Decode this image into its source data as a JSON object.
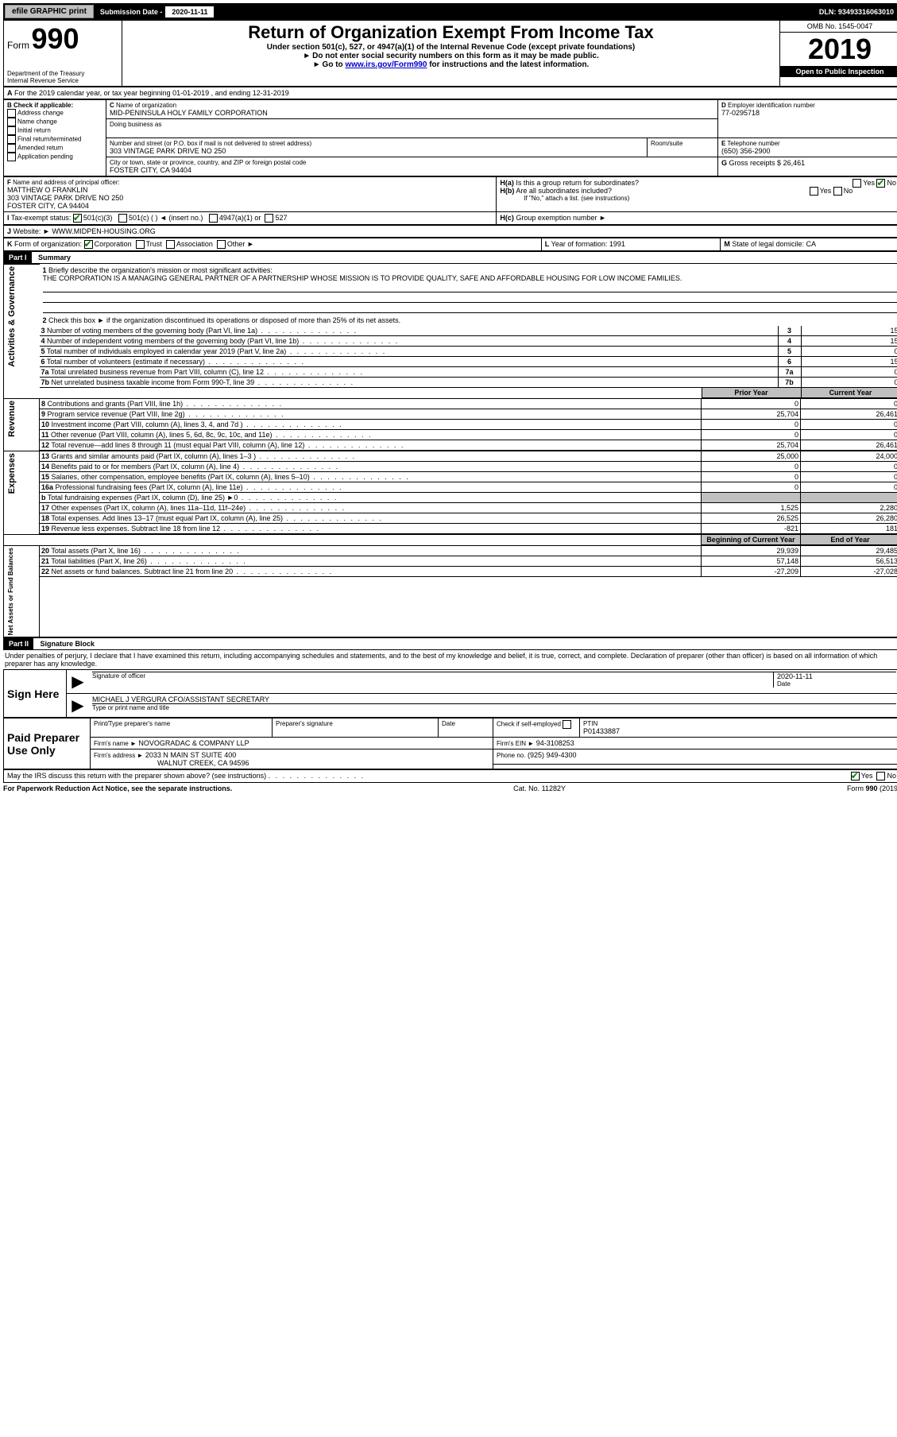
{
  "topbar": {
    "efile": "efile GRAPHIC print",
    "sub_label": "Submission Date - ",
    "sub_date": "2020-11-11",
    "dln_label": "DLN: ",
    "dln": "93493316063010"
  },
  "header": {
    "form_word": "Form",
    "form_num": "990",
    "dept1": "Department of the Treasury",
    "dept2": "Internal Revenue Service",
    "title": "Return of Organization Exempt From Income Tax",
    "sub1": "Under section 501(c), 527, or 4947(a)(1) of the Internal Revenue Code (except private foundations)",
    "sub2": "Do not enter social security numbers on this form as it may be made public.",
    "sub3_pre": "Go to ",
    "sub3_link": "www.irs.gov/Form990",
    "sub3_post": " for instructions and the latest information.",
    "omb_label": "OMB No. 1545-0047",
    "year": "2019",
    "open": "Open to Public Inspection"
  },
  "lineA": "For the 2019 calendar year, or tax year beginning 01-01-2019   , and ending 12-31-2019",
  "boxB": {
    "label": "Check if applicable:",
    "items": [
      "Address change",
      "Name change",
      "Initial return",
      "Final return/terminated",
      "Amended return",
      "Application pending"
    ]
  },
  "boxC": {
    "label": "Name of organization",
    "name": "MID-PENINSULA HOLY FAMILY CORPORATION",
    "dba_label": "Doing business as",
    "addr_label": "Number and street (or P.O. box if mail is not delivered to street address)",
    "room_label": "Room/suite",
    "addr": "303 VINTAGE PARK DRIVE NO 250",
    "city_label": "City or town, state or province, country, and ZIP or foreign postal code",
    "city": "FOSTER CITY, CA  94404"
  },
  "boxD": {
    "label": "Employer identification number",
    "val": "77-0295718"
  },
  "boxE": {
    "label": "Telephone number",
    "val": "(650) 356-2900"
  },
  "boxG": {
    "label": "Gross receipts $",
    "val": "26,461"
  },
  "boxF": {
    "label": "Name and address of principal officer:",
    "name": "MATTHEW O FRANKLIN",
    "addr": "303 VINTAGE PARK DRIVE NO 250",
    "city": "FOSTER CITY, CA  94404"
  },
  "boxH": {
    "a": "Is this a group return for subordinates?",
    "b": "Are all subordinates included?",
    "note": "If \"No,\" attach a list. (see instructions)",
    "c_label": "Group exemption number ►",
    "yes": "Yes",
    "no": "No"
  },
  "taxexempt": {
    "label": "Tax-exempt status:",
    "a": "501(c)(3)",
    "b": "501(c) (  ) ◄ (insert no.)",
    "c": "4947(a)(1) or",
    "d": "527"
  },
  "boxJ": {
    "label": "Website: ►",
    "val": "WWW.MIDPEN-HOUSING.ORG"
  },
  "boxK": {
    "label": "Form of organization:",
    "a": "Corporation",
    "b": "Trust",
    "c": "Association",
    "d": "Other ►"
  },
  "boxL": {
    "label": "Year of formation:",
    "val": "1991"
  },
  "boxM": {
    "label": "State of legal domicile:",
    "val": "CA"
  },
  "part1": {
    "bar": "Part I",
    "title": "Summary",
    "q1": "Briefly describe the organization's mission or most significant activities:",
    "q1_val": "THE CORPORATION IS A MANAGING GENERAL PARTNER OF A PARTNERSHIP WHOSE MISSION IS TO PROVIDE QUALITY, SAFE AND AFFORDABLE HOUSING FOR LOW INCOME FAMILIES.",
    "q2": "Check this box ►      if the organization discontinued its operations or disposed of more than 25% of its net assets.",
    "sideA": "Activities & Governance",
    "sideR": "Revenue",
    "sideE": "Expenses",
    "sideN": "Net Assets or Fund Balances",
    "col_prior": "Prior Year",
    "col_curr": "Current Year",
    "col_boy": "Beginning of Current Year",
    "col_eoy": "End of Year",
    "rows_gov": [
      {
        "n": "3",
        "t": "Number of voting members of the governing body (Part VI, line 1a)",
        "v": "15"
      },
      {
        "n": "4",
        "t": "Number of independent voting members of the governing body (Part VI, line 1b)",
        "v": "15"
      },
      {
        "n": "5",
        "t": "Total number of individuals employed in calendar year 2019 (Part V, line 2a)",
        "v": "0"
      },
      {
        "n": "6",
        "t": "Total number of volunteers (estimate if necessary)",
        "v": "15"
      },
      {
        "n": "7a",
        "t": "Total unrelated business revenue from Part VIII, column (C), line 12",
        "v": "0"
      },
      {
        "n": "7b",
        "t": "Net unrelated business taxable income from Form 990-T, line 39",
        "v": "0"
      }
    ],
    "rows_rev": [
      {
        "n": "8",
        "t": "Contributions and grants (Part VIII, line 1h)",
        "p": "0",
        "c": "0"
      },
      {
        "n": "9",
        "t": "Program service revenue (Part VIII, line 2g)",
        "p": "25,704",
        "c": "26,461"
      },
      {
        "n": "10",
        "t": "Investment income (Part VIII, column (A), lines 3, 4, and 7d )",
        "p": "0",
        "c": "0"
      },
      {
        "n": "11",
        "t": "Other revenue (Part VIII, column (A), lines 5, 6d, 8c, 9c, 10c, and 11e)",
        "p": "0",
        "c": "0"
      },
      {
        "n": "12",
        "t": "Total revenue—add lines 8 through 11 (must equal Part VIII, column (A), line 12)",
        "p": "25,704",
        "c": "26,461"
      }
    ],
    "rows_exp": [
      {
        "n": "13",
        "t": "Grants and similar amounts paid (Part IX, column (A), lines 1–3 )",
        "p": "25,000",
        "c": "24,000"
      },
      {
        "n": "14",
        "t": "Benefits paid to or for members (Part IX, column (A), line 4)",
        "p": "0",
        "c": "0"
      },
      {
        "n": "15",
        "t": "Salaries, other compensation, employee benefits (Part IX, column (A), lines 5–10)",
        "p": "0",
        "c": "0"
      },
      {
        "n": "16a",
        "t": "Professional fundraising fees (Part IX, column (A), line 11e)",
        "p": "0",
        "c": "0"
      },
      {
        "n": "b",
        "t": "Total fundraising expenses (Part IX, column (D), line 25) ►0",
        "p": "",
        "c": "",
        "gray": true
      },
      {
        "n": "17",
        "t": "Other expenses (Part IX, column (A), lines 11a–11d, 11f–24e)",
        "p": "1,525",
        "c": "2,280"
      },
      {
        "n": "18",
        "t": "Total expenses. Add lines 13–17 (must equal Part IX, column (A), line 25)",
        "p": "26,525",
        "c": "26,280"
      },
      {
        "n": "19",
        "t": "Revenue less expenses. Subtract line 18 from line 12",
        "p": "-821",
        "c": "181"
      }
    ],
    "rows_net": [
      {
        "n": "20",
        "t": "Total assets (Part X, line 16)",
        "p": "29,939",
        "c": "29,485"
      },
      {
        "n": "21",
        "t": "Total liabilities (Part X, line 26)",
        "p": "57,148",
        "c": "56,513"
      },
      {
        "n": "22",
        "t": "Net assets or fund balances. Subtract line 21 from line 20",
        "p": "-27,209",
        "c": "-27,028"
      }
    ]
  },
  "part2": {
    "bar": "Part II",
    "title": "Signature Block",
    "decl": "Under penalties of perjury, I declare that I have examined this return, including accompanying schedules and statements, and to the best of my knowledge and belief, it is true, correct, and complete. Declaration of preparer (other than officer) is based on all information of which preparer has any knowledge.",
    "sign_here": "Sign Here",
    "sig_label": "Signature of officer",
    "date_label": "Date",
    "sig_date": "2020-11-11",
    "officer": "MICHAEL J VERGURA  CFO/ASSISTANT SECRETARY",
    "officer_label": "Type or print name and title",
    "paid": "Paid Preparer Use Only",
    "pp_name_label": "Print/Type preparer's name",
    "pp_sig_label": "Preparer's signature",
    "pp_check": "Check       if self-employed",
    "ptin_label": "PTIN",
    "ptin": "P01433887",
    "firm_name_label": "Firm's name    ►",
    "firm_name": "NOVOGRADAC & COMPANY LLP",
    "firm_ein_label": "Firm's EIN ►",
    "firm_ein": "94-3108253",
    "firm_addr_label": "Firm's address ►",
    "firm_addr1": "2033 N MAIN ST SUITE 400",
    "firm_addr2": "WALNUT CREEK, CA  94596",
    "phone_label": "Phone no.",
    "phone": "(925) 949-4300",
    "discuss": "May the IRS discuss this return with the preparer shown above? (see instructions)"
  },
  "footer": {
    "left": "For Paperwork Reduction Act Notice, see the separate instructions.",
    "mid": "Cat. No. 11282Y",
    "right": "Form 990 (2019)"
  }
}
